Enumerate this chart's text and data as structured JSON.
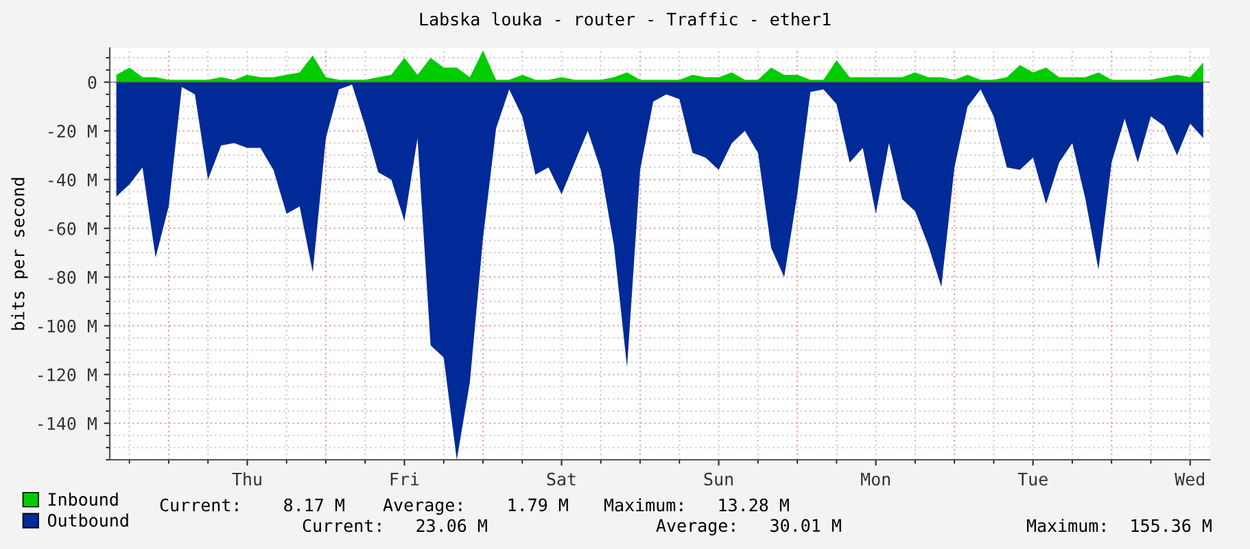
{
  "chart_data": {
    "type": "area",
    "title": "Labska louka - router - Traffic - ether1",
    "ylabel": "bits per second",
    "categories": [
      null,
      null,
      null,
      null,
      null,
      null,
      null,
      null,
      null,
      null,
      "Thu",
      null,
      null,
      null,
      null,
      null,
      null,
      null,
      null,
      null,
      null,
      null,
      "Fri",
      null,
      null,
      null,
      null,
      null,
      null,
      null,
      null,
      null,
      null,
      null,
      "Sat",
      null,
      null,
      null,
      null,
      null,
      null,
      null,
      null,
      null,
      null,
      null,
      "Sun",
      null,
      null,
      null,
      null,
      null,
      null,
      null,
      null,
      null,
      null,
      null,
      "Mon",
      null,
      null,
      null,
      null,
      null,
      null,
      null,
      null,
      null,
      null,
      null,
      "Tue",
      null,
      null,
      null,
      null,
      null,
      null,
      null,
      null,
      null,
      null,
      null,
      "Wed",
      null
    ],
    "ylim": [
      -155,
      14
    ],
    "yticks": [
      0,
      {
        "value": -20,
        "label": "-20 M"
      },
      {
        "value": -40,
        "label": "-40 M"
      },
      {
        "value": -60,
        "label": "-60 M"
      },
      {
        "value": -80,
        "label": "-80 M"
      },
      {
        "value": -100,
        "label": "-100 M"
      },
      {
        "value": -120,
        "label": "-120 M"
      },
      {
        "value": -140,
        "label": "-140 M"
      }
    ],
    "grid": true,
    "legend": "bottom left",
    "series": [
      {
        "name": "Inbound",
        "color": "#00cc00",
        "values": [
          3,
          6,
          2,
          2,
          1,
          1,
          1,
          1,
          2,
          1,
          3,
          2,
          2,
          3,
          4,
          11,
          2,
          1,
          1,
          1,
          2,
          3,
          10,
          3,
          10,
          6,
          6,
          2,
          13,
          1,
          1,
          3,
          1,
          1,
          2,
          1,
          1,
          1,
          2,
          4,
          1,
          1,
          1,
          1,
          3,
          2,
          2,
          4,
          1,
          1,
          6,
          3,
          3,
          1,
          1,
          9,
          2,
          2,
          2,
          2,
          2,
          4,
          2,
          2,
          1,
          3,
          1,
          1,
          2,
          7,
          4,
          6,
          2,
          2,
          2,
          4,
          1,
          1,
          1,
          1,
          2,
          3,
          2,
          8
        ]
      },
      {
        "name": "Outbound",
        "color": "#002a97",
        "values": [
          -47,
          -42,
          -35,
          -72,
          -51,
          -2,
          -5,
          -40,
          -26,
          -25,
          -27,
          -27,
          -36,
          -54,
          -51,
          -78,
          -23,
          -3,
          -1,
          -18,
          -37,
          -40,
          -57,
          -23,
          -108,
          -113,
          -155,
          -123,
          -64,
          -19,
          -3,
          -14,
          -38,
          -35,
          -46,
          -33,
          -20,
          -36,
          -67,
          -117,
          -36,
          -8,
          -5,
          -7,
          -29,
          -31,
          -36,
          -25,
          -20,
          -29,
          -68,
          -80,
          -46,
          -4,
          -3,
          -9,
          -33,
          -27,
          -54,
          -25,
          -48,
          -53,
          -67,
          -84,
          -35,
          -10,
          -3,
          -14,
          -35,
          -36,
          -31,
          -50,
          -33,
          -25,
          -48,
          -77,
          -33,
          -15,
          -33,
          -14,
          -18,
          -30,
          -17,
          -23
        ]
      }
    ],
    "annotations": [
      "Current:    8.17 M",
      "Average:    1.79 M",
      "Maximum:   13.28 M",
      "Current:   23.06 M",
      "Average:   30.01 M",
      "Maximum:  155.36 M"
    ]
  }
}
